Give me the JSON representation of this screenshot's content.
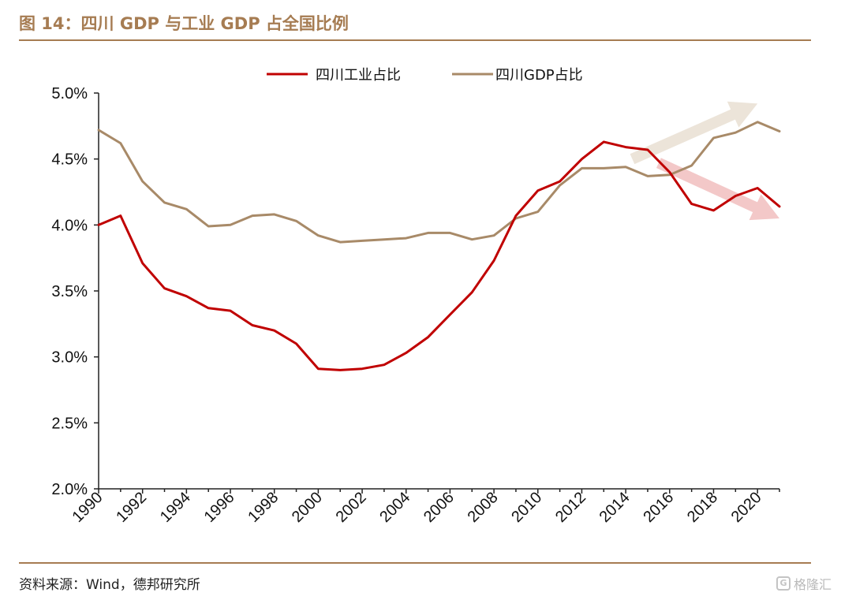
{
  "header": {
    "title": "图 14：四川 GDP 与工业 GDP 占全国比例"
  },
  "footer": {
    "source": "资料来源：Wind，德邦研究所",
    "watermark": "格隆汇"
  },
  "chart_data": {
    "type": "line",
    "title": "",
    "xlabel": "",
    "ylabel": "",
    "ylim": [
      2.0,
      5.0
    ],
    "xlim": [
      1990,
      2021
    ],
    "ytick_values": [
      2.0,
      2.5,
      3.0,
      3.5,
      4.0,
      4.5,
      5.0
    ],
    "ytick_labels": [
      "2.0%",
      "2.5%",
      "3.0%",
      "3.5%",
      "4.0%",
      "4.5%",
      "5.0%"
    ],
    "xtick_labels": [
      "1990",
      "1992",
      "1994",
      "1996",
      "1998",
      "2000",
      "2002",
      "2004",
      "2006",
      "2008",
      "2010",
      "2012",
      "2014",
      "2016",
      "2018",
      "2020"
    ],
    "x": [
      1990,
      1991,
      1992,
      1993,
      1994,
      1995,
      1996,
      1997,
      1998,
      1999,
      2000,
      2001,
      2002,
      2003,
      2004,
      2005,
      2006,
      2007,
      2008,
      2009,
      2010,
      2011,
      2012,
      2013,
      2014,
      2015,
      2016,
      2017,
      2018,
      2019,
      2020,
      2021
    ],
    "grid": false,
    "legend_position": "top-center",
    "series": [
      {
        "name": "四川工业占比",
        "color": "#c00000",
        "values": [
          4.0,
          4.07,
          3.71,
          3.52,
          3.46,
          3.37,
          3.35,
          3.24,
          3.2,
          3.1,
          2.91,
          2.9,
          2.91,
          2.94,
          3.03,
          3.15,
          3.32,
          3.49,
          3.73,
          4.07,
          4.26,
          4.33,
          4.5,
          4.63,
          4.59,
          4.57,
          4.4,
          4.16,
          4.11,
          4.22,
          4.28,
          4.14
        ]
      },
      {
        "name": "四川GDP占比",
        "color": "#a88a68",
        "values": [
          4.72,
          4.62,
          4.33,
          4.17,
          4.12,
          3.99,
          4.0,
          4.07,
          4.08,
          4.03,
          3.92,
          3.87,
          3.88,
          3.89,
          3.9,
          3.94,
          3.94,
          3.89,
          3.92,
          4.05,
          4.1,
          4.3,
          4.43,
          4.43,
          4.44,
          4.37,
          4.38,
          4.45,
          4.66,
          4.7,
          4.78,
          4.71
        ]
      }
    ],
    "annotations": [
      {
        "kind": "trend-arrow",
        "direction": "up",
        "color": "#ece4d9",
        "from": [
          2014.3,
          4.5
        ],
        "to": [
          2020.0,
          4.92
        ]
      },
      {
        "kind": "trend-arrow",
        "direction": "down",
        "color": "#f3c8c8",
        "from": [
          2015.5,
          4.47
        ],
        "to": [
          2021.0,
          4.05
        ]
      }
    ]
  }
}
